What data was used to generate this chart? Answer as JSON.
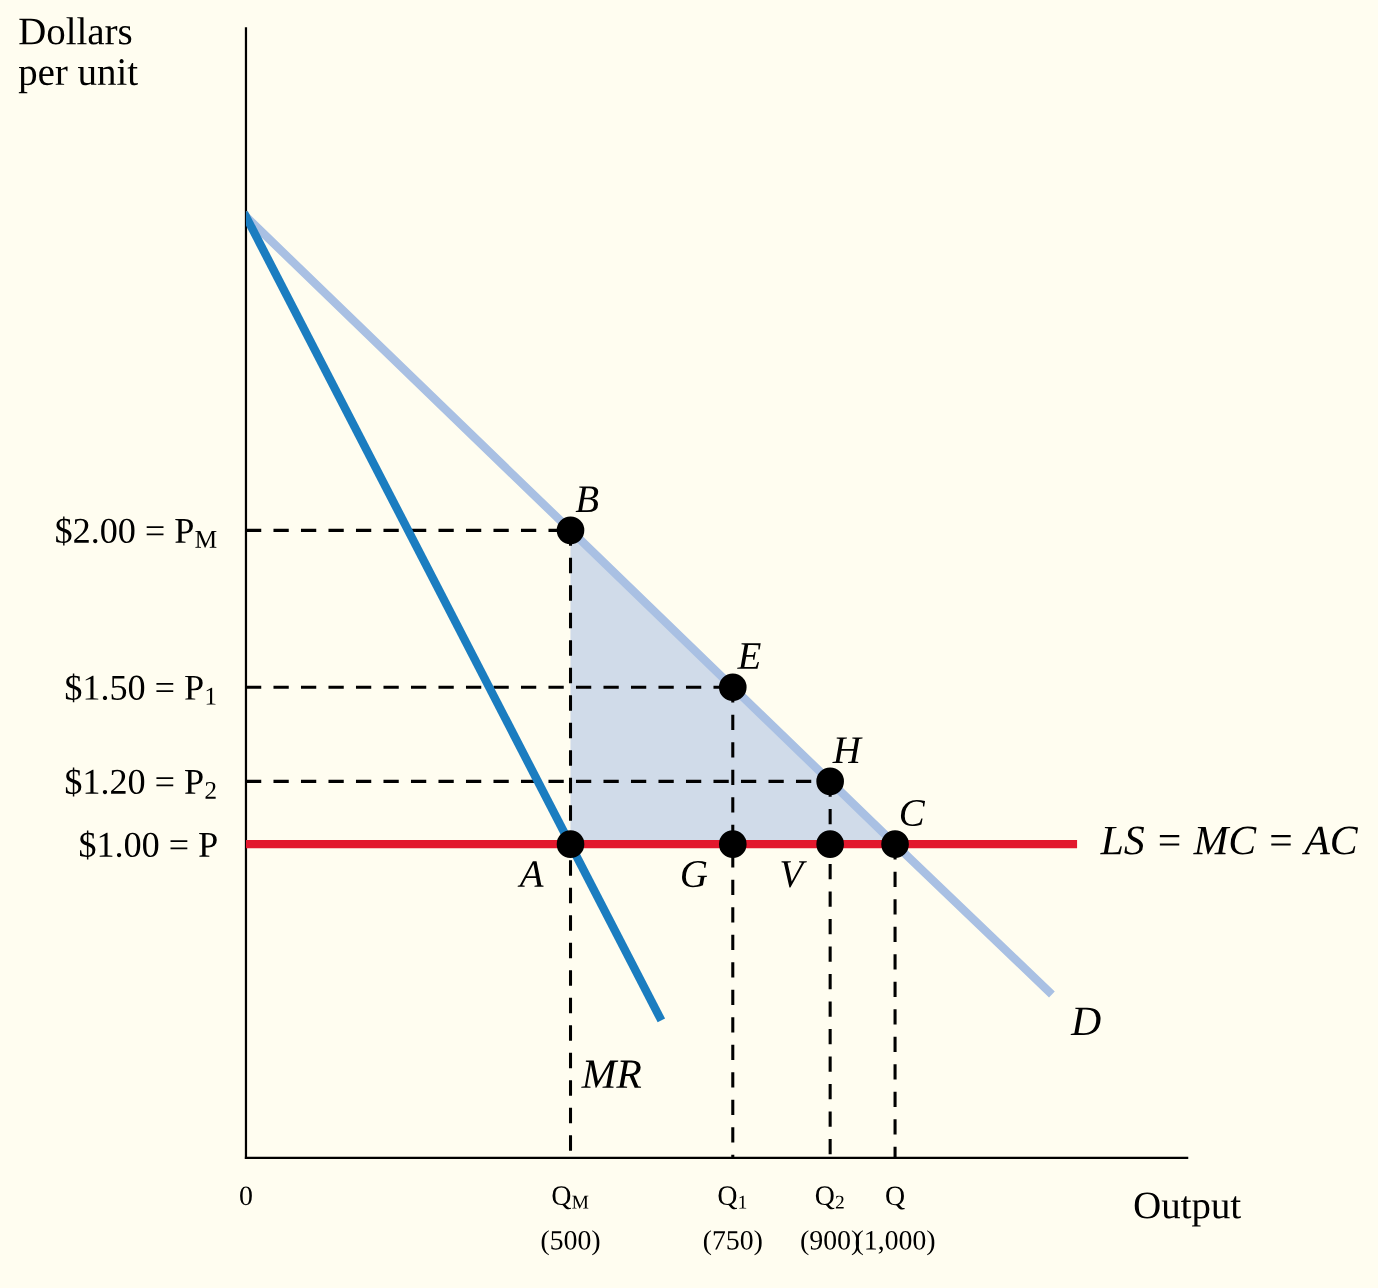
{
  "chart_data": {
    "type": "line",
    "xlabel": "Output",
    "ylabel": "Dollars\nper unit",
    "xlim": [
      0,
      1450
    ],
    "ylim": [
      0,
      3.6
    ],
    "xticks": [
      {
        "value": 0,
        "label": "0"
      },
      {
        "value": 500,
        "label": "Q$_{M}$\n(500)"
      },
      {
        "value": 750,
        "label": "Q$_{1}$\n(750)"
      },
      {
        "value": 900,
        "label": "Q$_{2}$\n(900)"
      },
      {
        "value": 1000,
        "label": "Q\n(1,000)"
      }
    ],
    "yticks": [
      {
        "value": 1,
        "label": "$1.00 = P"
      },
      {
        "value": 1.2,
        "label": "$1.20 = P$_{2}$"
      },
      {
        "value": 1.5,
        "label": "$1.50 = P$_{1}$"
      },
      {
        "value": 2,
        "label": "$2.00 = P$_{M}$"
      }
    ],
    "grid": false,
    "legend": false,
    "series": [
      {
        "name": "D",
        "x": [
          0,
          500,
          1000,
          1237
        ],
        "values": [
          3,
          2,
          1,
          0.53
        ],
        "lower": [
          null,
          1,
          1,
          null
        ],
        "upper": [
          null,
          2,
          1,
          null
        ],
        "color": "#a9c0e3"
      },
      {
        "name": "MR",
        "x": [
          0,
          637
        ],
        "values": [
          3,
          0.45
        ],
        "color": "#1b7dc0"
      },
      {
        "name": "LS = MC = AC",
        "x": [
          0,
          1274
        ],
        "values": [
          1,
          1
        ],
        "color": "#e2182d"
      },
      {
        "type": "line",
        "x": [
          0,
          500
        ],
        "values": [
          2,
          2
        ],
        "color": "#000000",
        "line_style": "dashed"
      },
      {
        "type": "line",
        "x": [
          0,
          750
        ],
        "values": [
          1.5,
          1.5
        ],
        "color": "#000000",
        "line_style": "dashed"
      },
      {
        "type": "line",
        "x": [
          0,
          900
        ],
        "values": [
          1.2,
          1.2
        ],
        "color": "#000000",
        "line_style": "dashed"
      },
      {
        "type": "line",
        "x": [
          500,
          500
        ],
        "values": [
          2,
          0
        ],
        "color": "#000000",
        "line_style": "dashed"
      },
      {
        "type": "line",
        "x": [
          750,
          750
        ],
        "values": [
          1.5,
          0
        ],
        "color": "#000000",
        "line_style": "dashed"
      },
      {
        "type": "line",
        "x": [
          900,
          900
        ],
        "values": [
          1.2,
          0
        ],
        "color": "#000000",
        "line_style": "dashed"
      },
      {
        "type": "line",
        "x": [
          1000,
          1000
        ],
        "values": [
          1,
          0
        ],
        "color": "#000000",
        "line_style": "dashed"
      },
      {
        "type": "scatter",
        "x": [
          500,
          750,
          900,
          1000,
          500,
          750,
          900
        ],
        "values": [
          2,
          1.5,
          1.2,
          1,
          1,
          1,
          1
        ],
        "color": "#000000",
        "marker": "circle"
      }
    ],
    "annotations": [
      {
        "text": "B",
        "x": 500,
        "y": 2
      },
      {
        "text": "E",
        "x": 750,
        "y": 1.5
      },
      {
        "text": "H",
        "x": 900,
        "y": 1.2
      },
      {
        "text": "C",
        "x": 1000,
        "y": 1
      },
      {
        "text": "A",
        "x": 500,
        "y": 1
      },
      {
        "text": "G",
        "x": 750,
        "y": 1
      },
      {
        "text": "V",
        "x": 900,
        "y": 1
      }
    ]
  }
}
